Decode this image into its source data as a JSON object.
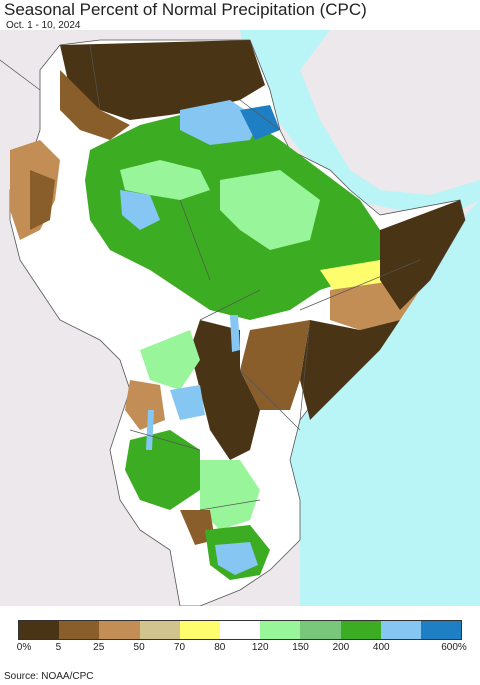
{
  "header": {
    "title": "Seasonal Percent of Normal Precipitation (CPC)",
    "date_range": "Oct. 1 - 10, 2024"
  },
  "colors": {
    "ocean": "#b9f5f7",
    "outside_land": "#ece8ec",
    "border": "#555555"
  },
  "legend": {
    "swatches": [
      {
        "color": "#4a3416"
      },
      {
        "color": "#8a5e2a"
      },
      {
        "color": "#c28e55"
      },
      {
        "color": "#d2c48f"
      },
      {
        "color": "#fdfd6e"
      },
      {
        "color": "#ffffff"
      },
      {
        "color": "#98f59a"
      },
      {
        "color": "#79c77a"
      },
      {
        "color": "#3cad22"
      },
      {
        "color": "#85c6f3"
      },
      {
        "color": "#1e7fc4"
      }
    ],
    "labels": [
      "0%",
      "5",
      "25",
      "50",
      "70",
      "80",
      "120",
      "150",
      "200",
      "400",
      "600%"
    ]
  },
  "footer": {
    "source": "Source: NOAA/CPC"
  }
}
